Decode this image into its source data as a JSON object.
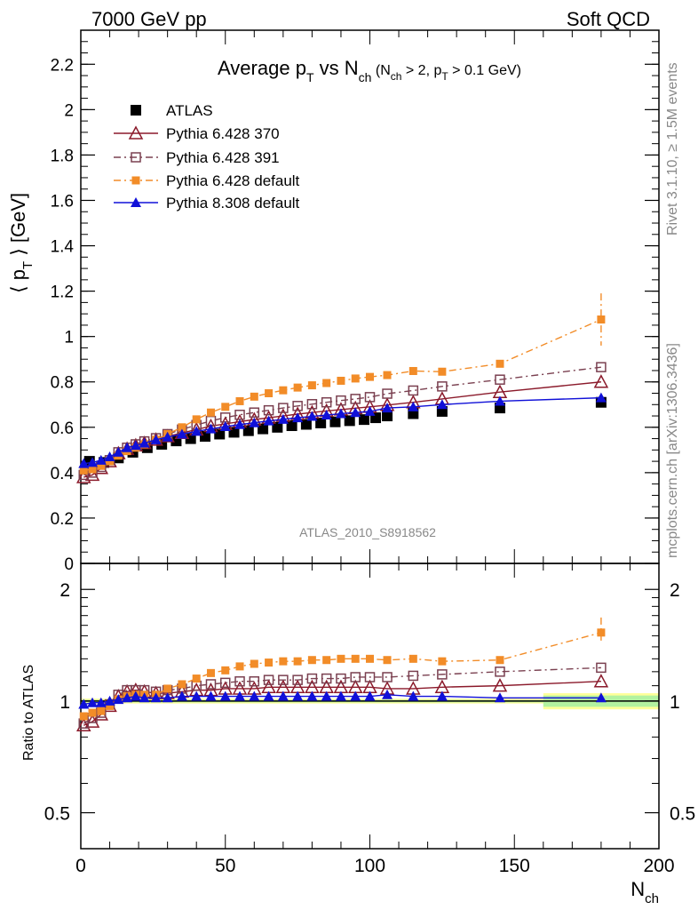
{
  "header": {
    "left": "7000 GeV pp",
    "right": "Soft QCD"
  },
  "side": {
    "rivet": "Rivet 3.1.10, ≥ 1.5M events",
    "mcplots": "mcplots.cern.ch [arXiv:1306.3436]"
  },
  "analysis_id": "ATLAS_2010_S8918562",
  "chart_data": [
    {
      "type": "scatter",
      "panel": "main",
      "title": "Average p_T vs N_ch (N_ch > 2, p_T > 0.1 GeV)",
      "title_parts": {
        "main": "Average p",
        "main_sub": "T",
        "vs": " vs N",
        "vs_sub": "ch",
        "cond1": " (N",
        "cond1_sub": "ch",
        "cond2": " > 2, p",
        "cond2_sub": "T",
        "cond3": " > 0.1 GeV)"
      },
      "xlabel": "N_ch",
      "ylabel": "⟨ p_T ⟩ [GeV]",
      "xlim": [
        0,
        200
      ],
      "ylim": [
        0,
        2.35
      ],
      "y_ticks": [
        "0",
        "0.2",
        "0.4",
        "0.6",
        "0.8",
        "1",
        "1.2",
        "1.4",
        "1.6",
        "1.8",
        "2",
        "2.2"
      ],
      "x_ticks": [
        "0",
        "50",
        "100",
        "150",
        "200"
      ],
      "legend_position": "top-left",
      "series": [
        {
          "name": "ATLAS",
          "color": "#000000",
          "marker": "filled-square",
          "x": [
            3,
            8,
            13,
            18,
            23,
            28,
            33,
            38,
            43,
            48,
            53,
            58,
            63,
            68,
            73,
            78,
            83,
            88,
            93,
            98,
            102,
            106,
            115,
            125,
            145,
            180
          ],
          "y": [
            0.45,
            0.445,
            0.465,
            0.49,
            0.51,
            0.525,
            0.54,
            0.55,
            0.56,
            0.57,
            0.578,
            0.585,
            0.593,
            0.6,
            0.607,
            0.613,
            0.619,
            0.624,
            0.629,
            0.634,
            0.642,
            0.65,
            0.66,
            0.67,
            0.685,
            0.71
          ]
        },
        {
          "name": "Pythia 6.428 370",
          "color": "#8b1a2b",
          "marker": "open-triangle",
          "line": "solid",
          "x": [
            1,
            4,
            7,
            10,
            13,
            16,
            19,
            22,
            26,
            30,
            35,
            40,
            45,
            50,
            55,
            60,
            65,
            70,
            75,
            80,
            85,
            90,
            95,
            100,
            106,
            115,
            125,
            145,
            180
          ],
          "y": [
            0.38,
            0.39,
            0.42,
            0.45,
            0.485,
            0.505,
            0.52,
            0.53,
            0.545,
            0.56,
            0.575,
            0.59,
            0.605,
            0.615,
            0.625,
            0.634,
            0.642,
            0.65,
            0.658,
            0.665,
            0.672,
            0.678,
            0.684,
            0.69,
            0.698,
            0.71,
            0.725,
            0.755,
            0.8
          ]
        },
        {
          "name": "Pythia 6.428 391",
          "color": "#7a4050",
          "marker": "open-square",
          "line": "dash-dot",
          "x": [
            1,
            4,
            7,
            10,
            13,
            16,
            19,
            22,
            26,
            30,
            35,
            40,
            45,
            50,
            55,
            60,
            65,
            70,
            75,
            80,
            85,
            90,
            95,
            100,
            106,
            115,
            125,
            145,
            180
          ],
          "y": [
            0.39,
            0.4,
            0.425,
            0.455,
            0.49,
            0.51,
            0.525,
            0.538,
            0.552,
            0.57,
            0.59,
            0.61,
            0.628,
            0.643,
            0.655,
            0.665,
            0.675,
            0.685,
            0.694,
            0.702,
            0.71,
            0.718,
            0.725,
            0.733,
            0.748,
            0.762,
            0.78,
            0.81,
            0.865
          ]
        },
        {
          "name": "Pythia 6.428 default",
          "color": "#f28c28",
          "marker": "filled-square-small",
          "line": "dash-dot",
          "x": [
            1,
            4,
            7,
            10,
            13,
            16,
            19,
            22,
            26,
            30,
            35,
            40,
            45,
            50,
            55,
            60,
            65,
            70,
            75,
            80,
            85,
            90,
            95,
            100,
            106,
            115,
            125,
            145,
            180
          ],
          "y": [
            0.41,
            0.415,
            0.43,
            0.45,
            0.475,
            0.495,
            0.51,
            0.525,
            0.545,
            0.57,
            0.6,
            0.635,
            0.665,
            0.69,
            0.715,
            0.735,
            0.75,
            0.763,
            0.775,
            0.785,
            0.795,
            0.805,
            0.815,
            0.822,
            0.83,
            0.848,
            0.845,
            0.88,
            1.075
          ]
        },
        {
          "name": "Pythia 8.308 default",
          "color": "#1010d8",
          "marker": "filled-triangle",
          "line": "solid",
          "x": [
            1,
            4,
            7,
            10,
            13,
            16,
            19,
            22,
            26,
            30,
            35,
            40,
            45,
            50,
            55,
            60,
            65,
            70,
            75,
            80,
            85,
            90,
            95,
            100,
            106,
            115,
            125,
            145,
            180
          ],
          "y": [
            0.44,
            0.445,
            0.455,
            0.47,
            0.49,
            0.51,
            0.52,
            0.53,
            0.545,
            0.557,
            0.57,
            0.582,
            0.593,
            0.603,
            0.612,
            0.62,
            0.628,
            0.635,
            0.642,
            0.648,
            0.654,
            0.66,
            0.665,
            0.67,
            0.685,
            0.69,
            0.7,
            0.715,
            0.73
          ]
        }
      ]
    },
    {
      "type": "scatter",
      "panel": "ratio",
      "ylabel": "Ratio to ATLAS",
      "xlabel": "N_ch",
      "xlabel_parts": {
        "main": "N",
        "sub": "ch"
      },
      "xlim": [
        0,
        200
      ],
      "ylim": [
        0.4,
        2.35
      ],
      "y_scale": "log",
      "y_ticks": [
        "0.5",
        "1",
        "2"
      ],
      "x_ticks": [
        "0",
        "50",
        "100",
        "150",
        "200"
      ],
      "series": [
        {
          "name": "Pythia 6.428 370",
          "color": "#8b1a2b",
          "marker": "open-triangle",
          "x": [
            1,
            4,
            7,
            10,
            13,
            16,
            19,
            22,
            26,
            30,
            35,
            40,
            45,
            50,
            55,
            60,
            65,
            70,
            75,
            80,
            85,
            90,
            95,
            100,
            106,
            115,
            125,
            145,
            180
          ],
          "y": [
            0.86,
            0.88,
            0.92,
            0.97,
            1.03,
            1.06,
            1.07,
            1.06,
            1.05,
            1.05,
            1.06,
            1.07,
            1.07,
            1.08,
            1.08,
            1.08,
            1.09,
            1.09,
            1.09,
            1.09,
            1.09,
            1.09,
            1.09,
            1.09,
            1.08,
            1.08,
            1.09,
            1.1,
            1.13
          ]
        },
        {
          "name": "Pythia 6.428 391",
          "color": "#7a4050",
          "marker": "open-square",
          "x": [
            1,
            4,
            7,
            10,
            13,
            16,
            19,
            22,
            26,
            30,
            35,
            40,
            45,
            50,
            55,
            60,
            65,
            70,
            75,
            80,
            85,
            90,
            95,
            100,
            106,
            115,
            125,
            145,
            180
          ],
          "y": [
            0.87,
            0.9,
            0.93,
            0.98,
            1.04,
            1.07,
            1.07,
            1.07,
            1.06,
            1.07,
            1.08,
            1.1,
            1.11,
            1.12,
            1.13,
            1.13,
            1.14,
            1.14,
            1.14,
            1.15,
            1.15,
            1.15,
            1.16,
            1.16,
            1.16,
            1.17,
            1.18,
            1.2,
            1.23
          ]
        },
        {
          "name": "Pythia 6.428 default",
          "color": "#f28c28",
          "marker": "filled-square-small",
          "x": [
            1,
            4,
            7,
            10,
            13,
            16,
            19,
            22,
            26,
            30,
            35,
            40,
            45,
            50,
            55,
            60,
            65,
            70,
            75,
            80,
            85,
            90,
            95,
            100,
            106,
            115,
            125,
            145,
            180
          ],
          "y": [
            0.91,
            0.93,
            0.94,
            0.97,
            1.01,
            1.03,
            1.04,
            1.04,
            1.04,
            1.08,
            1.11,
            1.15,
            1.19,
            1.21,
            1.24,
            1.26,
            1.27,
            1.28,
            1.28,
            1.29,
            1.29,
            1.3,
            1.3,
            1.3,
            1.29,
            1.3,
            1.28,
            1.29,
            1.53
          ]
        },
        {
          "name": "Pythia 8.308 default",
          "color": "#1010d8",
          "marker": "filled-triangle",
          "x": [
            1,
            4,
            7,
            10,
            13,
            16,
            19,
            22,
            26,
            30,
            35,
            40,
            45,
            50,
            55,
            60,
            65,
            70,
            75,
            80,
            85,
            90,
            95,
            100,
            106,
            115,
            125,
            145,
            180
          ],
          "y": [
            0.98,
            0.99,
            0.99,
            1.0,
            1.01,
            1.02,
            1.03,
            1.02,
            1.02,
            1.02,
            1.03,
            1.03,
            1.03,
            1.03,
            1.03,
            1.03,
            1.03,
            1.03,
            1.03,
            1.03,
            1.03,
            1.03,
            1.03,
            1.03,
            1.04,
            1.03,
            1.03,
            1.02,
            1.02
          ]
        }
      ]
    }
  ],
  "legend": [
    {
      "label": "ATLAS"
    },
    {
      "label": "Pythia 6.428 370"
    },
    {
      "label": "Pythia 6.428 391"
    },
    {
      "label": "Pythia 6.428 default"
    },
    {
      "label": "Pythia 8.308 default"
    }
  ]
}
